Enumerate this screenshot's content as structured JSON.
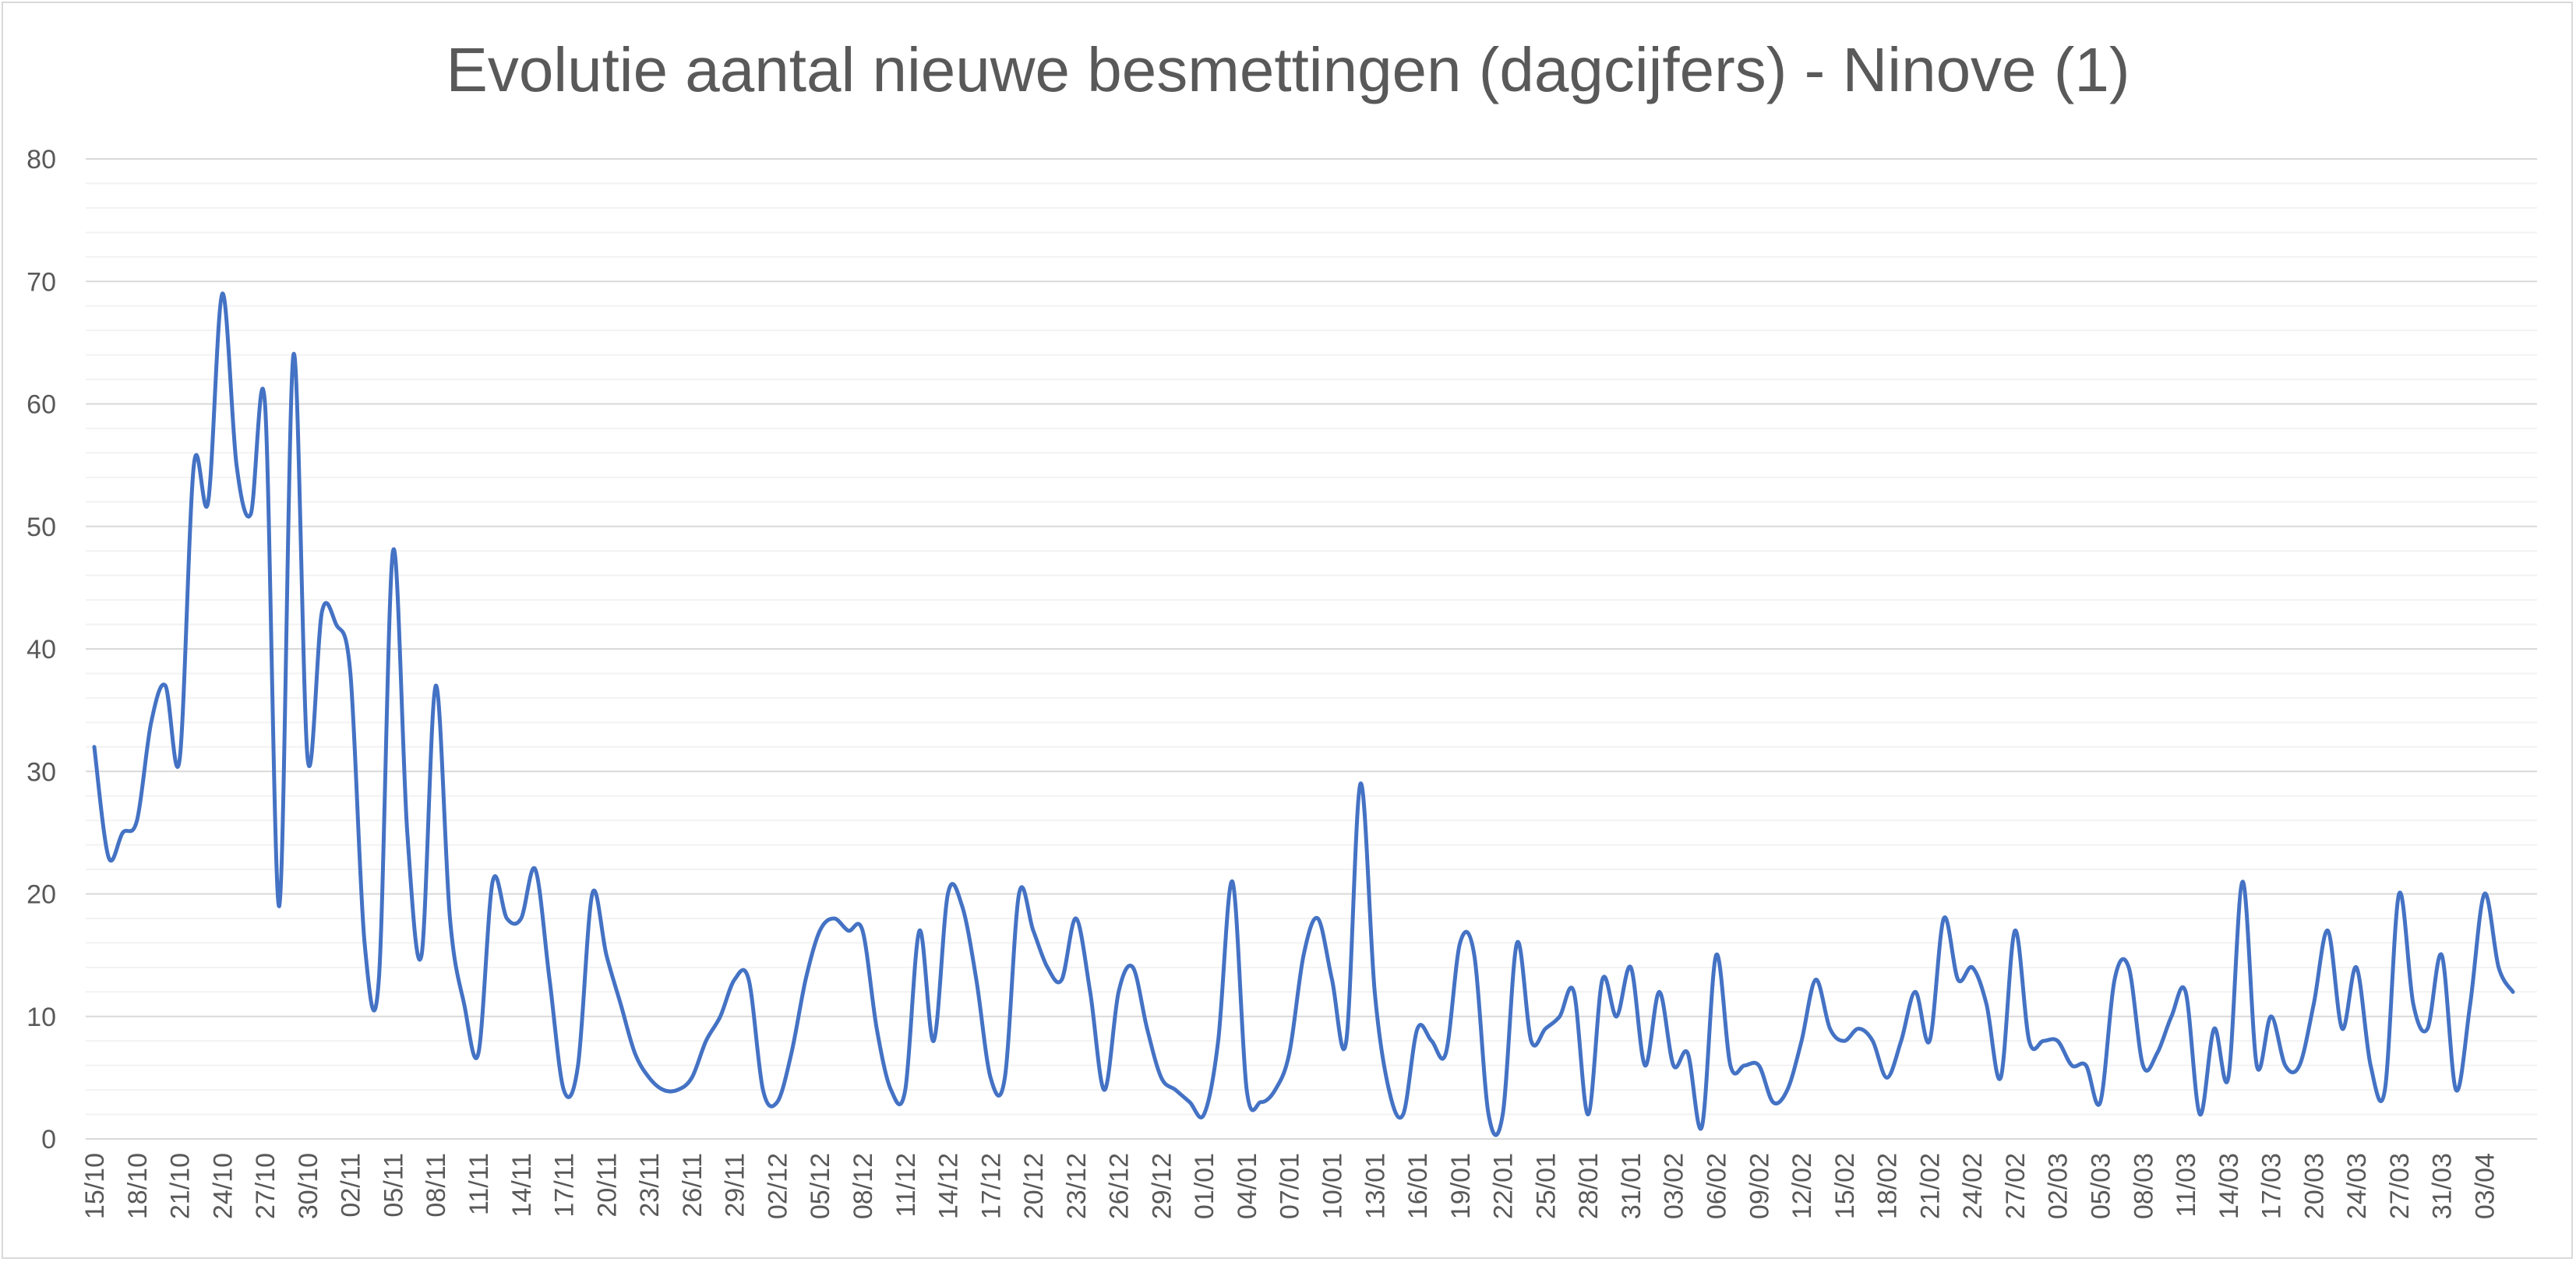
{
  "chart_data": {
    "type": "line",
    "title": "Evolutie aantal nieuwe besmettingen (dagcijfers) - Ninove (1)",
    "xlabel": "",
    "ylabel": "",
    "ylim": [
      0,
      80
    ],
    "yticks": [
      "0",
      "10",
      "20",
      "30",
      "40",
      "50",
      "60",
      "70",
      "80"
    ],
    "grid": true,
    "legend": "none",
    "color": "#4472c4",
    "x_tick_labels": [
      "15/10",
      "18/10",
      "21/10",
      "24/10",
      "27/10",
      "30/10",
      "02/11",
      "05/11",
      "08/11",
      "11/11",
      "14/11",
      "17/11",
      "20/11",
      "23/11",
      "26/11",
      "29/11",
      "02/12",
      "05/12",
      "08/12",
      "11/12",
      "14/12",
      "17/12",
      "20/12",
      "23/12",
      "26/12",
      "29/12",
      "01/01",
      "04/01",
      "07/01",
      "10/01",
      "13/01",
      "16/01",
      "19/01",
      "22/01",
      "25/01",
      "28/01",
      "31/01",
      "03/02",
      "06/02",
      "09/02",
      "12/02",
      "15/02",
      "18/02",
      "21/02",
      "24/02",
      "27/02",
      "02/03",
      "05/03",
      "08/03",
      "11/03",
      "14/03",
      "17/03",
      "20/03",
      "24/03",
      "27/03",
      "31/03",
      "03/04"
    ],
    "series": [
      {
        "values": [
          32,
          23,
          25,
          26,
          34,
          37,
          31,
          55,
          52,
          69,
          55,
          51,
          60,
          19,
          64,
          31,
          43,
          42,
          38,
          16,
          13,
          48,
          25,
          15,
          37,
          18,
          11,
          7,
          21,
          18,
          18,
          22,
          13,
          4,
          6,
          20,
          15,
          11,
          7,
          5,
          4,
          4,
          5,
          8,
          10,
          13,
          13,
          4,
          3,
          7,
          13,
          17,
          18,
          17,
          17,
          9,
          4,
          4,
          17,
          8,
          20,
          19,
          13,
          5,
          5,
          20,
          17,
          14,
          13,
          18,
          12,
          4,
          12,
          14,
          9,
          5,
          4,
          3,
          2,
          8,
          21,
          4,
          3,
          4,
          7,
          15,
          18,
          13,
          8,
          29,
          12,
          4,
          2,
          9,
          8,
          7,
          16,
          15,
          2,
          2,
          16,
          8,
          9,
          10,
          12,
          2,
          13,
          10,
          14,
          6,
          12,
          6,
          7,
          1,
          15,
          6,
          6,
          6,
          3,
          4,
          8,
          13,
          9,
          8,
          9,
          8,
          5,
          8,
          12,
          8,
          18,
          13,
          14,
          11,
          5,
          17,
          8,
          8,
          8,
          6,
          6,
          3,
          13,
          14,
          6,
          7,
          10,
          12,
          2,
          9,
          5,
          21,
          6,
          10,
          6,
          6,
          11,
          17,
          9,
          14,
          6,
          4,
          20,
          11,
          9,
          15,
          4,
          11,
          20,
          14,
          12
        ]
      }
    ]
  }
}
